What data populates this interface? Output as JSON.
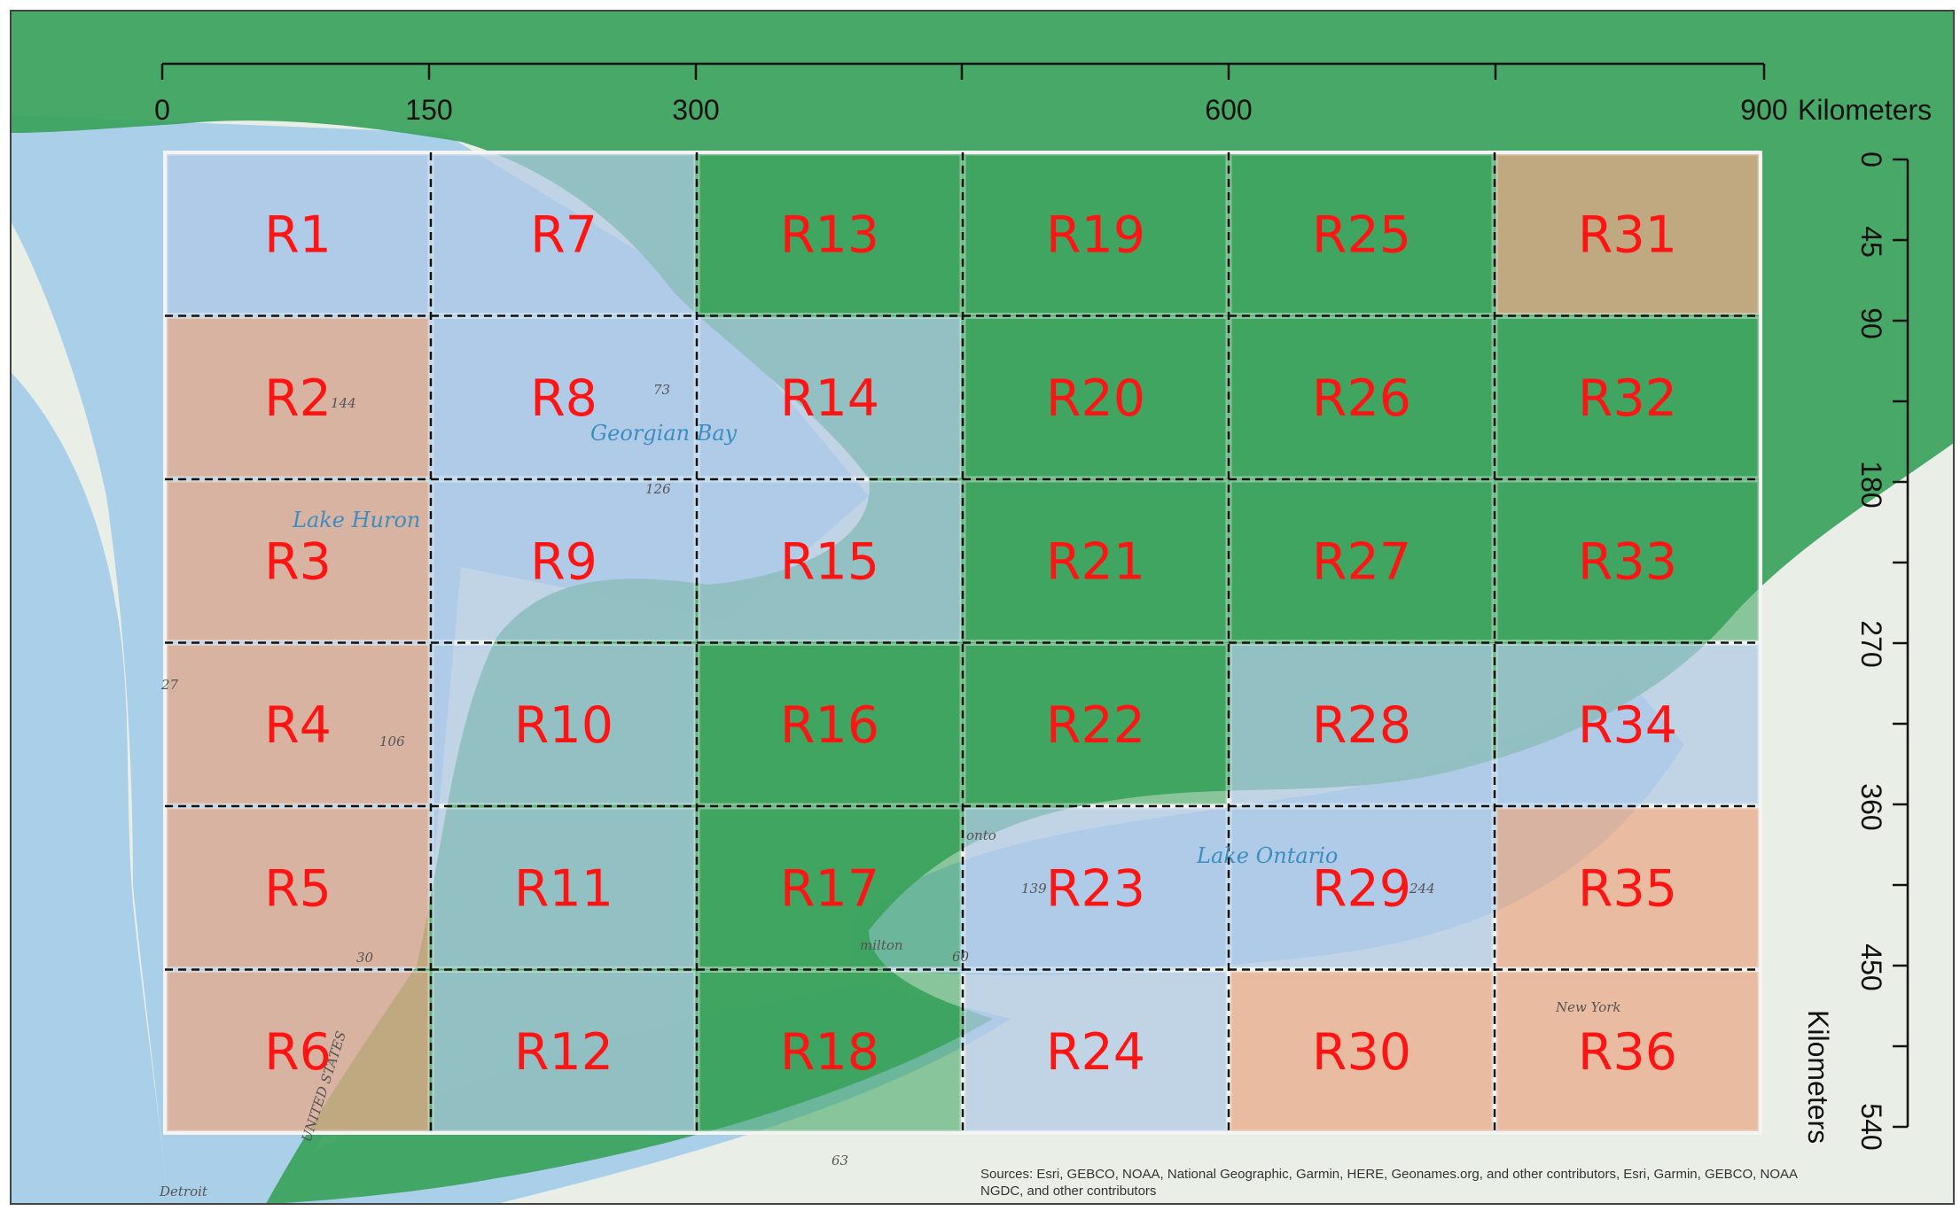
{
  "scale_top": {
    "ticks": [
      "0",
      "150",
      "300",
      "600",
      "900"
    ],
    "unit": "Kilometers"
  },
  "scale_right": {
    "ticks": [
      "0",
      "45",
      "90",
      "180",
      "270",
      "360",
      "450",
      "540"
    ],
    "unit": "Kilometers"
  },
  "regions": [
    {
      "label": "R1",
      "cat": "blue"
    },
    {
      "label": "R2",
      "cat": "orange"
    },
    {
      "label": "R3",
      "cat": "orange"
    },
    {
      "label": "R4",
      "cat": "orange"
    },
    {
      "label": "R5",
      "cat": "orange"
    },
    {
      "label": "R6",
      "cat": "orange"
    },
    {
      "label": "R7",
      "cat": "blue"
    },
    {
      "label": "R8",
      "cat": "blue"
    },
    {
      "label": "R9",
      "cat": "blue"
    },
    {
      "label": "R10",
      "cat": "blue"
    },
    {
      "label": "R11",
      "cat": "blue"
    },
    {
      "label": "R12",
      "cat": "blue"
    },
    {
      "label": "R13",
      "cat": "green"
    },
    {
      "label": "R14",
      "cat": "blue"
    },
    {
      "label": "R15",
      "cat": "blue"
    },
    {
      "label": "R16",
      "cat": "green"
    },
    {
      "label": "R17",
      "cat": "green"
    },
    {
      "label": "R18",
      "cat": "green"
    },
    {
      "label": "R19",
      "cat": "green"
    },
    {
      "label": "R20",
      "cat": "green"
    },
    {
      "label": "R21",
      "cat": "green"
    },
    {
      "label": "R22",
      "cat": "green"
    },
    {
      "label": "R23",
      "cat": "blue"
    },
    {
      "label": "R24",
      "cat": "blue"
    },
    {
      "label": "R25",
      "cat": "green"
    },
    {
      "label": "R26",
      "cat": "green"
    },
    {
      "label": "R27",
      "cat": "green"
    },
    {
      "label": "R28",
      "cat": "blue"
    },
    {
      "label": "R29",
      "cat": "blue"
    },
    {
      "label": "R30",
      "cat": "orange"
    },
    {
      "label": "R31",
      "cat": "orange"
    },
    {
      "label": "R32",
      "cat": "green"
    },
    {
      "label": "R33",
      "cat": "green"
    },
    {
      "label": "R34",
      "cat": "blue"
    },
    {
      "label": "R35",
      "cat": "orange"
    },
    {
      "label": "R36",
      "cat": "orange"
    }
  ],
  "colors": {
    "green": "#3aa35c",
    "blue": "#b2c9e6",
    "orange": "#e8a98a",
    "water": "#a9cfe9",
    "land": "#e9efe6",
    "label": "#ff1414"
  },
  "map_labels": {
    "georgian_bay": "Georgian Bay",
    "lake_huron": "Lake Huron",
    "lake_ontario": "Lake Ontario",
    "toronto": "onto",
    "hamilton": "milton",
    "detroit": "Detroit",
    "new_york": "New York",
    "usa": "UNITED STATES"
  },
  "basemap_numbers": [
    "144",
    "73",
    "126",
    "27",
    "106",
    "30",
    "139",
    "244",
    "60",
    "63"
  ],
  "attribution": {
    "line1": "Sources: Esri, GEBCO, NOAA, National Geographic, Garmin, HERE, Geonames.org, and other contributors, Esri, Garmin, GEBCO, NOAA",
    "line2": "NGDC, and other contributors"
  }
}
